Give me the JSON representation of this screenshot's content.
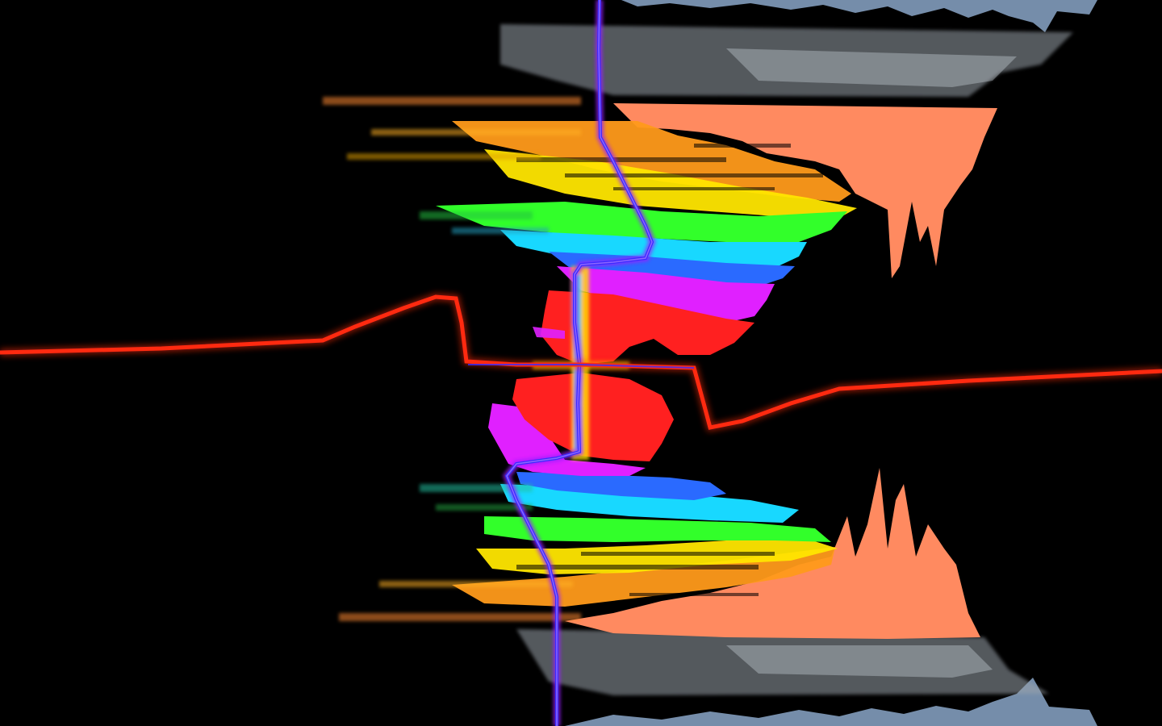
{
  "scene": {
    "description_visible_text": "",
    "background_color": "#000000",
    "palette": {
      "red_waveform": "#ff2a10",
      "blue_waveform": "#3a2cff",
      "blue_waveform_glow": "#9a1cff",
      "salmon": "#ff8a60",
      "orange": "#ff9a1a",
      "yellow": "#ffe600",
      "green": "#32ff2a",
      "cyan": "#18d8ff",
      "blue": "#2a6aff",
      "magenta": "#e020ff",
      "red": "#ff2020",
      "silver": "#c8d2dc",
      "steel_blue": "#8aa6c8"
    }
  }
}
